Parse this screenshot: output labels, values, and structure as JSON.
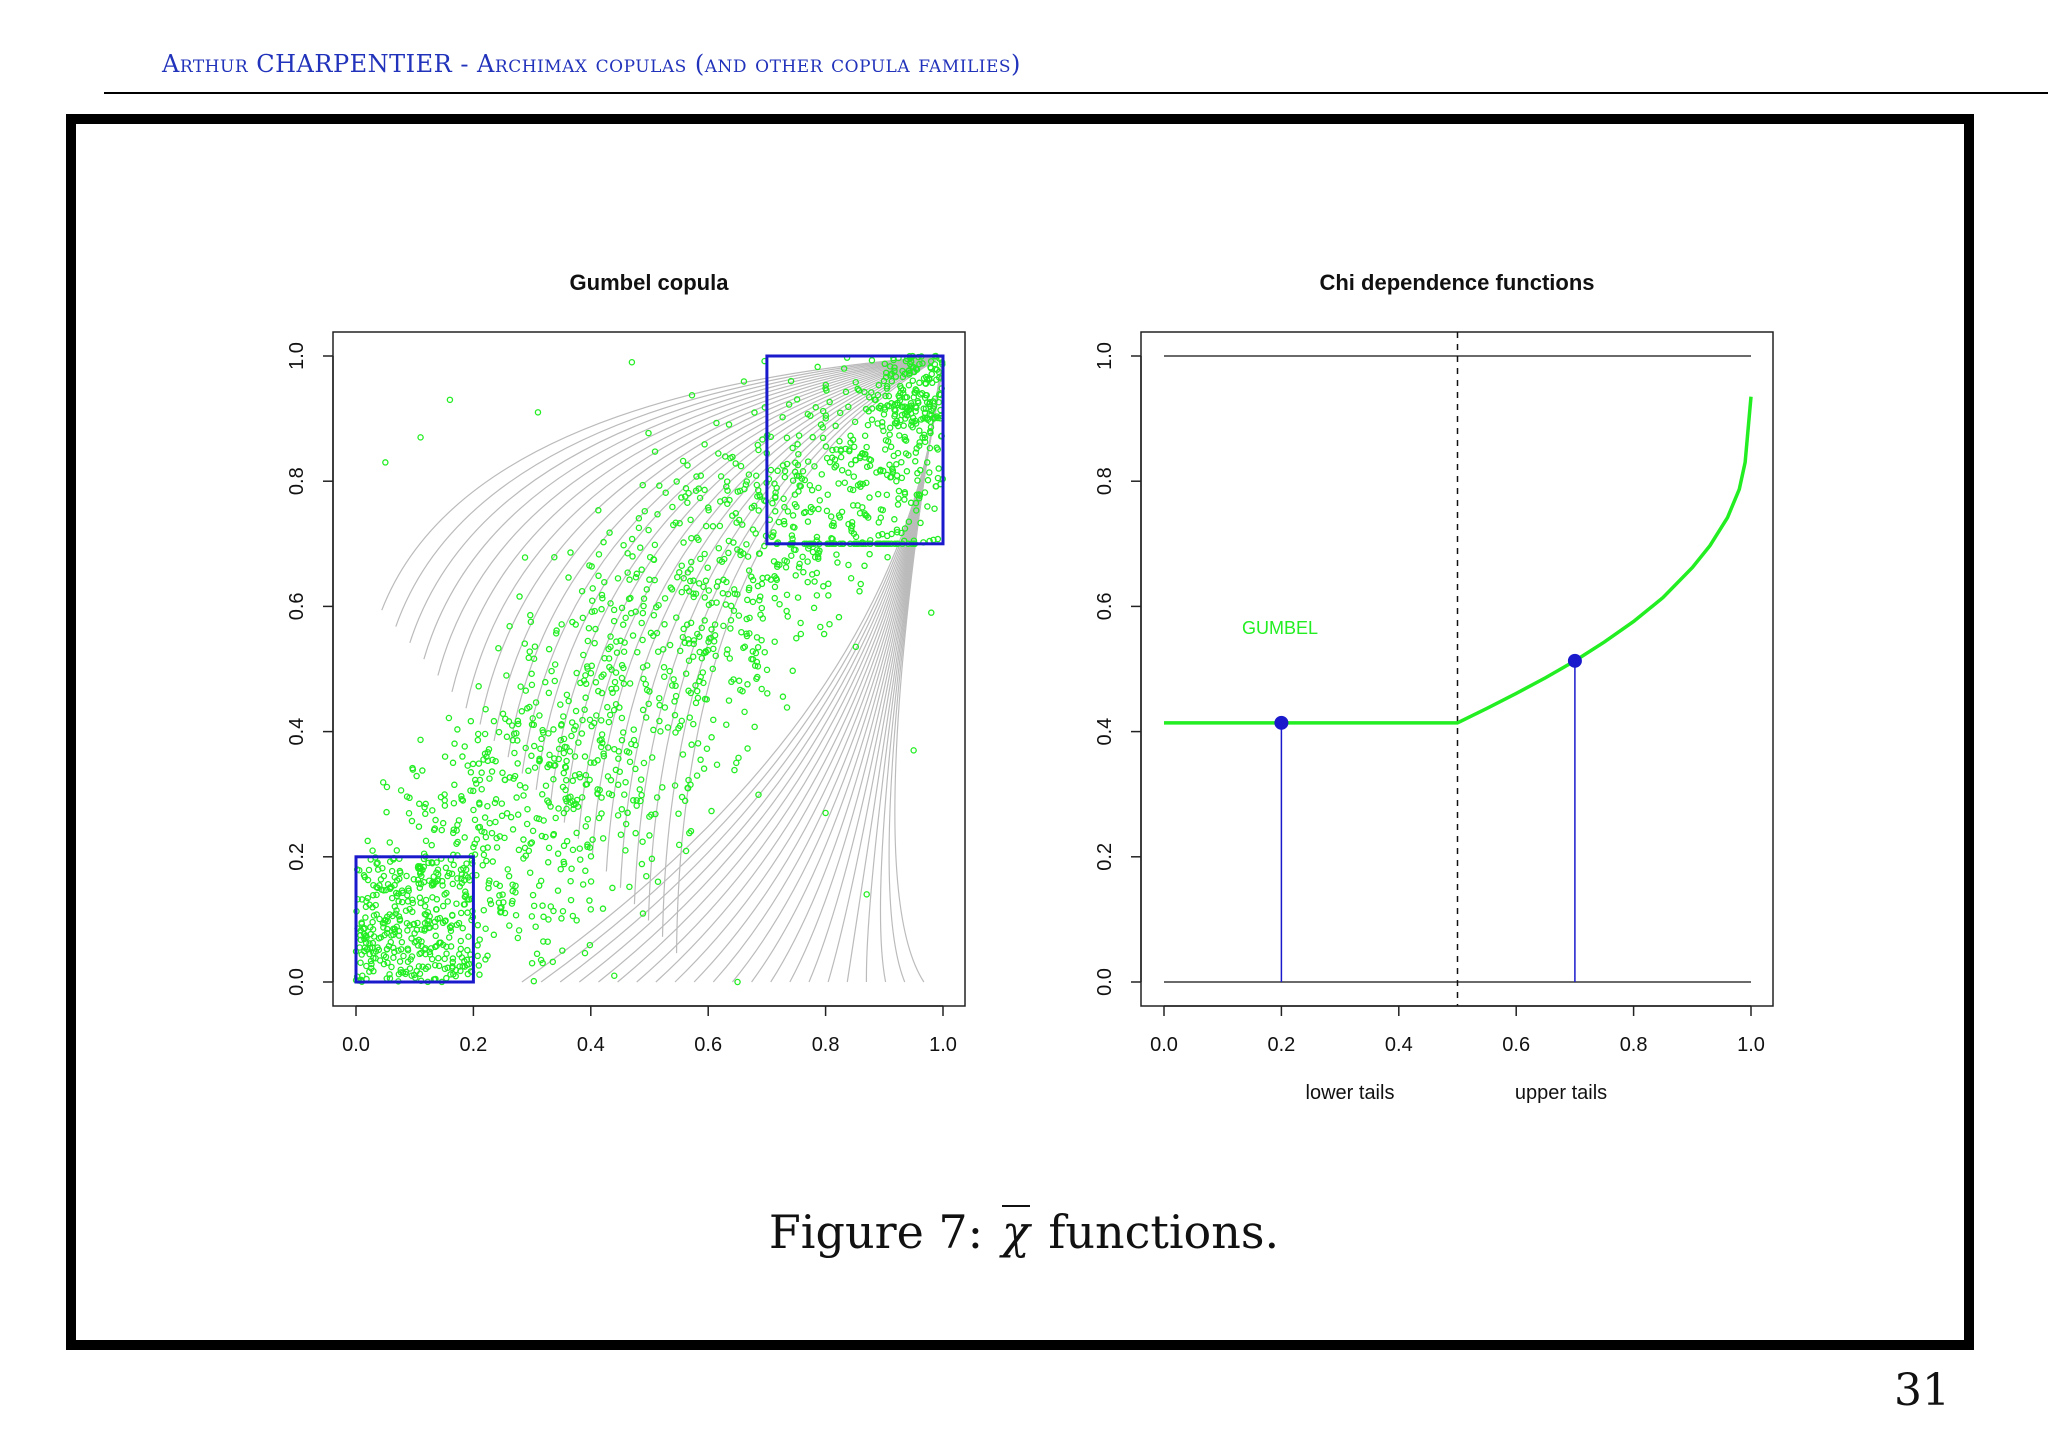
{
  "header": {
    "text": "Arthur CHARPENTIER - Archimax copulas (and other copula families)",
    "color": "#2233bb"
  },
  "caption": {
    "prefix": "Figure 7:",
    "symbol": "χ",
    "suffix": "functions."
  },
  "page_number": "31",
  "chart_data": [
    {
      "type": "scatter",
      "title": "Gumbel copula",
      "xlabel": "",
      "ylabel": "",
      "xlim": [
        0,
        1
      ],
      "ylim": [
        0,
        1
      ],
      "xticks": [
        "0.0",
        "0.2",
        "0.4",
        "0.6",
        "0.8",
        "1.0"
      ],
      "yticks": [
        "0.0",
        "0.2",
        "0.4",
        "0.6",
        "0.8",
        "1.0"
      ],
      "point_color": "#22ee22",
      "contour_color": "#bbbbbb",
      "box_color": "#1a1acc",
      "n_points": 2000,
      "points_sample": [
        [
          0.05,
          0.83
        ],
        [
          0.11,
          0.87
        ],
        [
          0.47,
          0.99
        ],
        [
          0.31,
          0.91
        ],
        [
          0.16,
          0.93
        ],
        [
          0.98,
          0.59
        ],
        [
          0.95,
          0.37
        ],
        [
          0.8,
          0.27
        ],
        [
          0.87,
          0.14
        ],
        [
          0.65,
          0.0
        ],
        [
          0.44,
          0.01
        ],
        [
          0.3,
          0.03
        ]
      ],
      "boxes": [
        {
          "x": [
            0.0,
            0.2
          ],
          "y": [
            0.0,
            0.2
          ],
          "label": "lower tail"
        },
        {
          "x": [
            0.7,
            1.0
          ],
          "y": [
            0.7,
            1.0
          ],
          "label": "upper tail"
        }
      ],
      "contours": "copula density level curves"
    },
    {
      "type": "line",
      "title": "Chi dependence functions",
      "xlim": [
        0,
        1
      ],
      "ylim": [
        0,
        1
      ],
      "xticks": [
        "0.0",
        "0.2",
        "0.4",
        "0.6",
        "0.8",
        "1.0"
      ],
      "yticks": [
        "0.0",
        "0.2",
        "0.4",
        "0.6",
        "0.8",
        "1.0"
      ],
      "lower_label": "lower tails",
      "upper_label": "upper tails",
      "series": [
        {
          "name": "GUMBEL",
          "color": "#22ee22",
          "x": [
            0.0,
            0.1,
            0.2,
            0.3,
            0.4,
            0.5,
            0.55,
            0.6,
            0.65,
            0.7,
            0.75,
            0.8,
            0.85,
            0.9,
            0.93,
            0.96,
            0.98,
            0.99,
            1.0
          ],
          "y": [
            0.414,
            0.414,
            0.414,
            0.414,
            0.414,
            0.414,
            0.437,
            0.461,
            0.486,
            0.513,
            0.543,
            0.576,
            0.614,
            0.662,
            0.697,
            0.742,
            0.787,
            0.83,
            0.935
          ]
        }
      ],
      "reference_lines": [
        0.0,
        1.0
      ],
      "divider_x": 0.5,
      "markers": [
        {
          "x": 0.2,
          "y": 0.414,
          "color": "#1a1acc"
        },
        {
          "x": 0.7,
          "y": 0.513,
          "color": "#1a1acc"
        }
      ]
    }
  ]
}
